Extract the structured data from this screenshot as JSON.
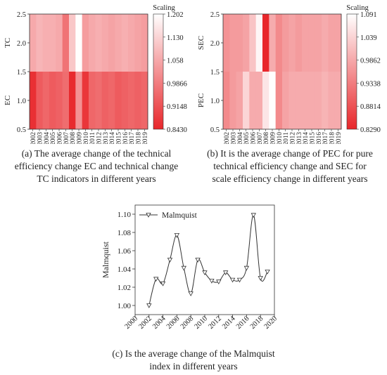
{
  "chart_data": [
    {
      "type": "heatmap",
      "panel": "a",
      "years": [
        "2002",
        "2003",
        "2004",
        "2005",
        "2006",
        "2007",
        "2008",
        "2009",
        "2010",
        "2011",
        "2012",
        "2013",
        "2014",
        "2015",
        "2016",
        "2017",
        "2018",
        "2019"
      ],
      "rows": [
        {
          "name": "TC",
          "values": [
            1.06,
            1.08,
            1.07,
            1.07,
            1.06,
            0.97,
            1.11,
            1.2,
            1.04,
            1.06,
            1.07,
            1.06,
            1.05,
            1.06,
            1.07,
            1.06,
            1.05,
            1.04
          ]
        },
        {
          "name": "EC",
          "values": [
            0.86,
            0.93,
            0.95,
            0.93,
            0.94,
            0.96,
            0.85,
            1.02,
            0.87,
            0.95,
            0.96,
            0.94,
            0.95,
            0.93,
            0.94,
            0.95,
            0.94,
            0.95
          ]
        }
      ],
      "ylim": [
        0.5,
        2.5
      ],
      "yticks": [
        "0.5",
        "1.0",
        "1.5",
        "2.0",
        "2.5"
      ],
      "colorbar": {
        "title": "Scaling",
        "min": 0.843,
        "max": 1.202,
        "ticks": [
          "1.202",
          "1.130",
          "1.058",
          "0.9866",
          "0.9148",
          "0.8430"
        ]
      },
      "low_color": "#e8262a",
      "high_color": "#ffffff",
      "caption": "(a) The average change of the technical efficiency change EC and technical change TC indicators in different years",
      "caption_lines": [
        "(a) The average change of the technical",
        "efficiency change EC and technical change",
        "TC indicators in different years"
      ]
    },
    {
      "type": "heatmap",
      "panel": "b",
      "years": [
        "2002",
        "2003",
        "2004",
        "2005",
        "2006",
        "2007",
        "2008",
        "2009",
        "2010",
        "2011",
        "2012",
        "2013",
        "2014",
        "2015",
        "2016",
        "2017",
        "2018",
        "2019"
      ],
      "rows": [
        {
          "name": "SEC",
          "values": [
            0.96,
            0.97,
            0.97,
            0.98,
            1.02,
            1.08,
            0.83,
            0.99,
            0.95,
            0.97,
            0.98,
            0.97,
            0.98,
            0.98,
            0.98,
            0.99,
            0.98,
            0.98
          ]
        },
        {
          "name": "PEC",
          "values": [
            0.95,
            0.97,
            0.98,
            1.04,
            0.99,
            0.99,
            1.06,
            1.09,
            0.95,
            0.98,
            0.99,
            0.99,
            0.99,
            0.99,
            0.99,
            1.0,
            0.99,
            0.99
          ]
        }
      ],
      "ylim": [
        0.5,
        2.5
      ],
      "yticks": [
        "0.5",
        "1.0",
        "1.5",
        "2.0",
        "2.5"
      ],
      "colorbar": {
        "title": "Scaling",
        "min": 0.829,
        "max": 1.091,
        "ticks": [
          "1.091",
          "1.039",
          "0.9862",
          "0.9338",
          "0.8814",
          "0.8290"
        ]
      },
      "low_color": "#e8262a",
      "high_color": "#ffffff",
      "caption": "(b) It is the average change of PEC for pure technical efficiency change and SEC for scale efficiency change in different years",
      "caption_lines": [
        "(b) It is the average change of PEC for pure",
        "technical efficiency change and SEC for",
        "scale efficiency change in different years"
      ]
    },
    {
      "type": "line",
      "panel": "c",
      "x": [
        2002,
        2003,
        2004,
        2005,
        2006,
        2007,
        2008,
        2009,
        2010,
        2011,
        2012,
        2013,
        2014,
        2015,
        2016,
        2017,
        2018,
        2019
      ],
      "series": [
        {
          "name": "Malmquist",
          "values": [
            1.0,
            1.029,
            1.024,
            1.05,
            1.077,
            1.041,
            1.013,
            1.05,
            1.036,
            1.027,
            1.026,
            1.036,
            1.028,
            1.028,
            1.041,
            1.099,
            1.03,
            1.037
          ]
        }
      ],
      "ylabel": "Malmquist",
      "xlabel": "",
      "xlim": [
        2000,
        2020
      ],
      "ylim": [
        0.99,
        1.11
      ],
      "xticks": [
        2000,
        2002,
        2004,
        2006,
        2008,
        2010,
        2012,
        2014,
        2016,
        2018,
        2020
      ],
      "yticks": [
        "1.00",
        "1.02",
        "1.04",
        "1.06",
        "1.08",
        "1.10"
      ],
      "legend": "top-left",
      "line_color": "#333333",
      "caption": "(c) Is the average change of the Malmquist index in different years",
      "caption_lines": [
        "(c) Is the average change of the Malmquist",
        "index in different years"
      ]
    }
  ]
}
